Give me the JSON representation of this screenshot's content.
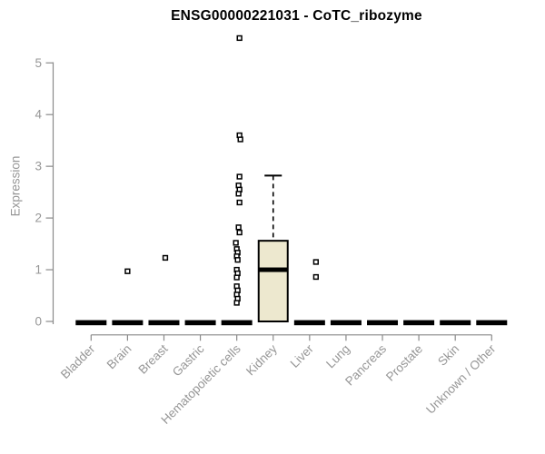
{
  "colors": {
    "background": "#ffffff",
    "title_color": "#000000",
    "axis_line": "#8a8a8a",
    "tick_label": "#969696",
    "box_fill": "#ede8cf",
    "box_stroke": "#000000",
    "median_color": "#000000",
    "outlier_stroke": "#000000"
  },
  "chart_data": {
    "type": "boxplot",
    "title": "ENSG00000221031 - CoTC_ribozyme",
    "ylabel": "Expression",
    "xlabel": "",
    "ylim": [
      0,
      5
    ],
    "yticks": [
      0,
      1,
      2,
      3,
      4,
      5
    ],
    "grid": "off",
    "legend": "none",
    "categories": [
      "Bladder",
      "Brain",
      "Breast",
      "Gastric",
      "Hematopoietic cells",
      "Kidney",
      "Liver",
      "Lung",
      "Pancreas",
      "Prostate",
      "Skin",
      "Unknown / Other"
    ],
    "boxes": [
      {
        "category": "Bladder",
        "q1": 0,
        "median": 0,
        "q3": 0,
        "whisker_low": 0,
        "whisker_high": 0,
        "outliers": []
      },
      {
        "category": "Brain",
        "q1": 0,
        "median": 0,
        "q3": 0,
        "whisker_low": 0,
        "whisker_high": 0,
        "outliers": [
          {
            "value": 0.97,
            "jitter": 0
          }
        ]
      },
      {
        "category": "Breast",
        "q1": 0,
        "median": 0,
        "q3": 0,
        "whisker_low": 0,
        "whisker_high": 0,
        "outliers": [
          {
            "value": 1.23,
            "jitter": 1.5
          }
        ]
      },
      {
        "category": "Gastric",
        "q1": 0,
        "median": 0,
        "q3": 0,
        "whisker_low": 0,
        "whisker_high": 0,
        "outliers": []
      },
      {
        "category": "Hematopoietic cells",
        "q1": 0,
        "median": 0,
        "q3": 0,
        "whisker_low": 0,
        "whisker_high": 0,
        "outliers": [
          {
            "value": 5.48,
            "jitter": 3
          },
          {
            "value": 3.6,
            "jitter": 3
          },
          {
            "value": 3.52,
            "jitter": 4
          },
          {
            "value": 2.8,
            "jitter": 3
          },
          {
            "value": 2.63,
            "jitter": 2
          },
          {
            "value": 2.55,
            "jitter": 3
          },
          {
            "value": 2.47,
            "jitter": 2
          },
          {
            "value": 2.3,
            "jitter": 3
          },
          {
            "value": 1.82,
            "jitter": 2
          },
          {
            "value": 1.72,
            "jitter": 3
          },
          {
            "value": 1.52,
            "jitter": -1
          },
          {
            "value": 1.4,
            "jitter": 0
          },
          {
            "value": 1.33,
            "jitter": 1
          },
          {
            "value": 1.26,
            "jitter": 0
          },
          {
            "value": 1.19,
            "jitter": 1
          },
          {
            "value": 1.0,
            "jitter": 0
          },
          {
            "value": 0.93,
            "jitter": 1
          },
          {
            "value": 0.85,
            "jitter": 0
          },
          {
            "value": 0.68,
            "jitter": 0
          },
          {
            "value": 0.6,
            "jitter": 1
          },
          {
            "value": 0.52,
            "jitter": 0
          },
          {
            "value": 0.44,
            "jitter": 1
          },
          {
            "value": 0.36,
            "jitter": 0
          }
        ]
      },
      {
        "category": "Kidney",
        "q1": 0,
        "median": 1.0,
        "q3": 1.56,
        "whisker_low": 0,
        "whisker_high": 2.82,
        "outliers": []
      },
      {
        "category": "Liver",
        "q1": 0,
        "median": 0,
        "q3": 0,
        "whisker_low": 0,
        "whisker_high": 0,
        "outliers": [
          {
            "value": 1.15,
            "jitter": 7
          },
          {
            "value": 0.86,
            "jitter": 7
          }
        ]
      },
      {
        "category": "Lung",
        "q1": 0,
        "median": 0,
        "q3": 0,
        "whisker_low": 0,
        "whisker_high": 0,
        "outliers": []
      },
      {
        "category": "Pancreas",
        "q1": 0,
        "median": 0,
        "q3": 0,
        "whisker_low": 0,
        "whisker_high": 0,
        "outliers": []
      },
      {
        "category": "Prostate",
        "q1": 0,
        "median": 0,
        "q3": 0,
        "whisker_low": 0,
        "whisker_high": 0,
        "outliers": []
      },
      {
        "category": "Skin",
        "q1": 0,
        "median": 0,
        "q3": 0,
        "whisker_low": 0,
        "whisker_high": 0,
        "outliers": []
      },
      {
        "category": "Unknown / Other",
        "q1": 0,
        "median": 0,
        "q3": 0,
        "whisker_low": 0,
        "whisker_high": 0,
        "outliers": []
      }
    ]
  }
}
